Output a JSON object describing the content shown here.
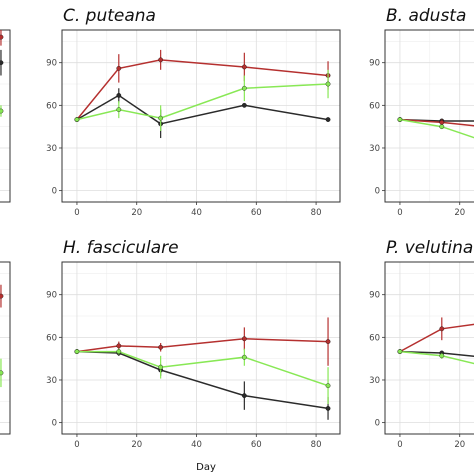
{
  "series_colors": {
    "red": "#b5302f",
    "black": "#2b2b2b",
    "green": "#88e855"
  },
  "axis": {
    "xlabel": "Day"
  },
  "chart_data": [
    {
      "type": "line",
      "id": "left-top-partial",
      "title": "",
      "x": [
        84
      ],
      "xlim": [
        -5,
        88
      ],
      "ylim": [
        -8,
        113
      ],
      "series": [
        {
          "color": "red",
          "values": [
            108
          ],
          "err": [
            6
          ]
        },
        {
          "color": "black",
          "values": [
            90
          ],
          "err": [
            9
          ]
        },
        {
          "color": "green",
          "values": [
            56
          ],
          "err": [
            4
          ]
        }
      ],
      "yticks": [],
      "xticks": []
    },
    {
      "type": "line",
      "id": "c-puteana",
      "title": "C. puteana",
      "x": [
        0,
        14,
        28,
        56,
        84
      ],
      "xlim": [
        -5,
        88
      ],
      "ylim": [
        -8,
        113
      ],
      "yticks": [
        0,
        30,
        60,
        90
      ],
      "xticks": [
        0,
        20,
        40,
        60,
        80
      ],
      "series": [
        {
          "color": "red",
          "values": [
            50,
            86,
            92,
            87,
            81
          ],
          "err": [
            0,
            10,
            7,
            10,
            10
          ]
        },
        {
          "color": "black",
          "values": [
            50,
            67,
            47,
            60,
            50
          ],
          "err": [
            0,
            5,
            10,
            0,
            0
          ]
        },
        {
          "color": "green",
          "values": [
            50,
            57,
            51,
            72,
            75
          ],
          "err": [
            0,
            6,
            9,
            9,
            10
          ]
        }
      ]
    },
    {
      "type": "line",
      "id": "b-adusta",
      "title": "B. adusta",
      "x": [
        0,
        14,
        28
      ],
      "xlim": [
        -5,
        88
      ],
      "ylim": [
        -8,
        113
      ],
      "yticks": [
        0,
        30,
        60,
        90
      ],
      "xticks": [
        0,
        20
      ],
      "series": [
        {
          "color": "black",
          "values": [
            50,
            49,
            49
          ],
          "err": [
            0,
            0,
            0
          ]
        },
        {
          "color": "red",
          "values": [
            50,
            48,
            45
          ],
          "err": [
            0,
            2,
            0
          ]
        },
        {
          "color": "green",
          "values": [
            50,
            45,
            35
          ],
          "err": [
            0,
            0,
            0
          ]
        }
      ]
    },
    {
      "type": "line",
      "id": "left-bottom-partial",
      "title": "",
      "x": [
        84
      ],
      "xlim": [
        -5,
        88
      ],
      "ylim": [
        -8,
        113
      ],
      "series": [
        {
          "color": "red",
          "values": [
            89
          ],
          "err": [
            8
          ]
        },
        {
          "color": "green",
          "values": [
            35
          ],
          "err": [
            10
          ]
        }
      ],
      "yticks": [],
      "xticks": []
    },
    {
      "type": "line",
      "id": "h-fasciculare",
      "title": "H. fasciculare",
      "x": [
        0,
        14,
        28,
        56,
        84
      ],
      "xlim": [
        -5,
        88
      ],
      "ylim": [
        -8,
        113
      ],
      "yticks": [
        0,
        30,
        60,
        90
      ],
      "xticks": [
        0,
        20,
        40,
        60,
        80
      ],
      "series": [
        {
          "color": "red",
          "values": [
            50,
            54,
            53,
            59,
            57
          ],
          "err": [
            0,
            3,
            3,
            8,
            17
          ]
        },
        {
          "color": "black",
          "values": [
            50,
            49,
            37,
            19,
            10
          ],
          "err": [
            0,
            2,
            4,
            10,
            8
          ]
        },
        {
          "color": "green",
          "values": [
            50,
            50,
            39,
            46,
            26
          ],
          "err": [
            0,
            2,
            8,
            6,
            13
          ]
        }
      ]
    },
    {
      "type": "line",
      "id": "p-velutina",
      "title": "P. velutina",
      "x": [
        0,
        14,
        28
      ],
      "xlim": [
        -5,
        88
      ],
      "ylim": [
        -8,
        113
      ],
      "yticks": [
        0,
        30,
        60,
        90
      ],
      "xticks": [
        0,
        20
      ],
      "series": [
        {
          "color": "red",
          "values": [
            50,
            66,
            70
          ],
          "err": [
            0,
            8,
            0
          ]
        },
        {
          "color": "black",
          "values": [
            50,
            49,
            46
          ],
          "err": [
            0,
            0,
            0
          ]
        },
        {
          "color": "green",
          "values": [
            50,
            47,
            40
          ],
          "err": [
            0,
            2,
            0
          ]
        }
      ]
    }
  ]
}
